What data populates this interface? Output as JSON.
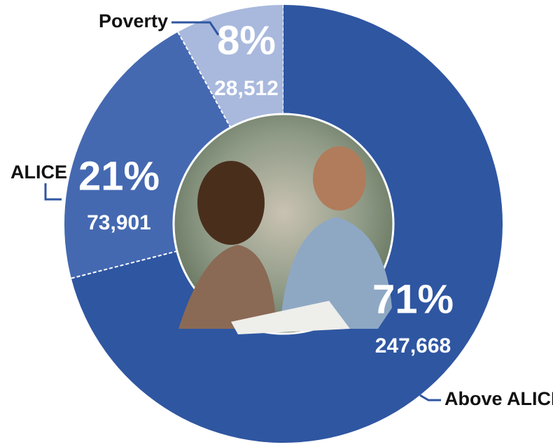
{
  "chart_data": {
    "type": "pie",
    "categories": [
      "Poverty",
      "ALICE",
      "Above ALICE"
    ],
    "values": [
      8,
      21,
      71
    ],
    "value_labels": [
      "8%",
      "21%",
      "71%"
    ],
    "counts": [
      28512,
      73901,
      247668
    ],
    "count_labels": [
      "28,512",
      "73,901",
      "247,668"
    ],
    "colors": [
      "#a9b9dd",
      "#4569b1",
      "#2f56a1"
    ]
  }
}
